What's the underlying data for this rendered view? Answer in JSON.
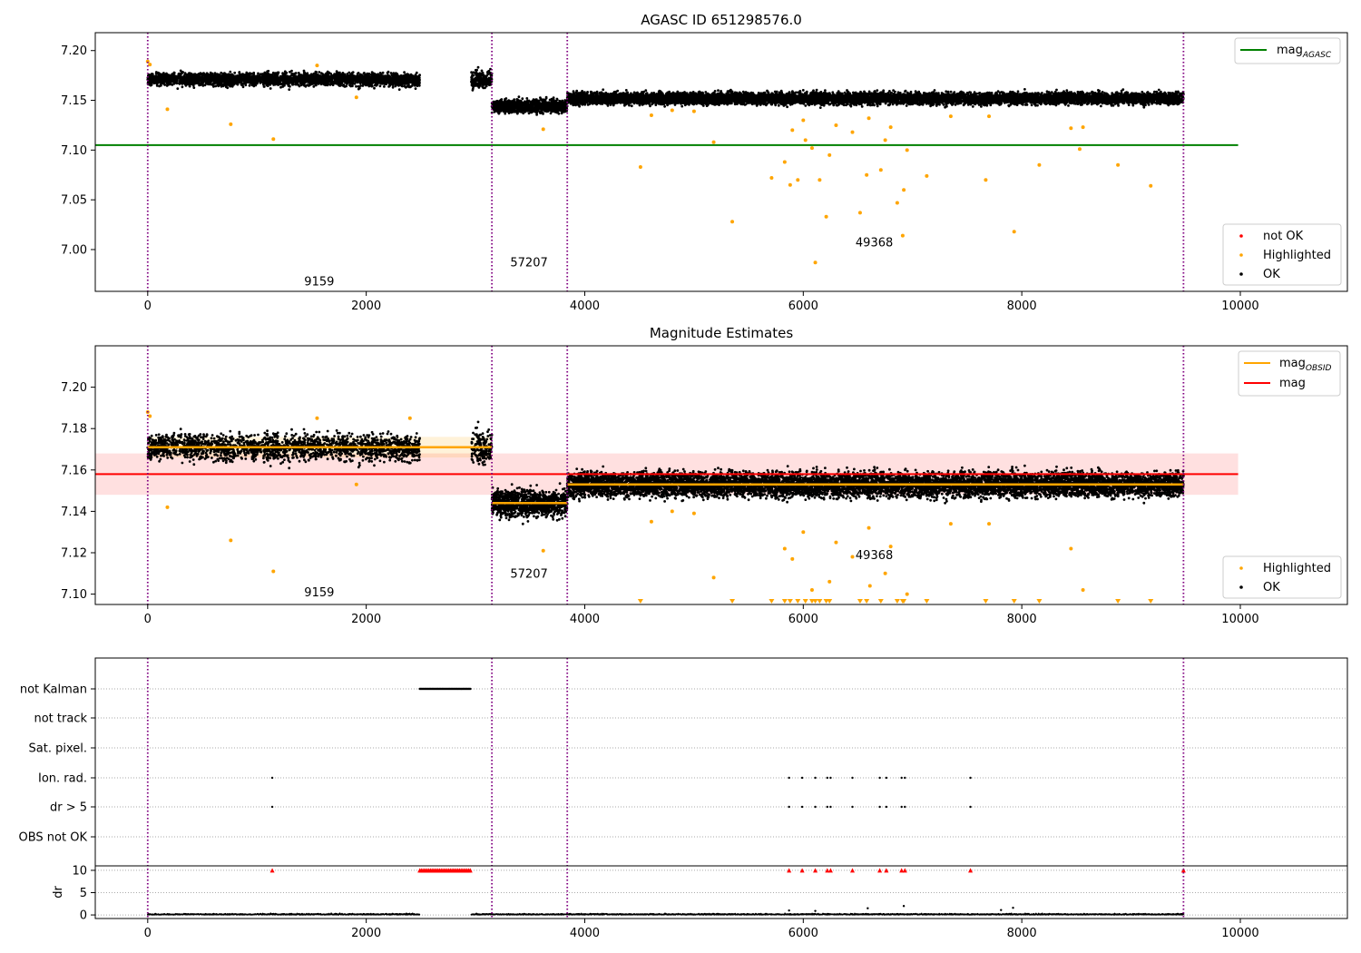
{
  "colors": {
    "ok": "#000000",
    "highlighted": "#ffa500",
    "not_ok": "#ff0000",
    "mag_agasc": "#008000",
    "mag": "#ff0000",
    "mag_obsid": "#ffa500",
    "obsid_boundary": "#800080"
  },
  "chart_data": [
    {
      "type": "scatter",
      "title": "AGASC ID 651298576.0",
      "xlabel": "",
      "ylabel": "",
      "xlim": [
        -480,
        10980
      ],
      "ylim": [
        6.958,
        7.218
      ],
      "xticks": [
        0,
        2000,
        4000,
        6000,
        8000,
        10000
      ],
      "yticks": [
        7.0,
        7.05,
        7.1,
        7.15,
        7.2
      ],
      "ytick_labels": [
        "7.00",
        "7.05",
        "7.10",
        "7.15",
        "7.20"
      ],
      "legend_upper": {
        "placement": "top-right",
        "entries": [
          {
            "label": "mag",
            "subscript": "AGASC"
          }
        ]
      },
      "legend_lower": {
        "placement": "bottom-right",
        "entries": [
          "not OK",
          "Highlighted",
          "OK"
        ]
      },
      "hlines": [
        {
          "name": "mag_AGASC",
          "y": 7.105,
          "x_range": [
            -480,
            9980
          ]
        }
      ],
      "obsid_boundaries": [
        0,
        3150,
        3840,
        9480
      ],
      "obsid_segments": [
        {
          "label": "9159",
          "x_range": [
            0,
            3150
          ],
          "ok_level": 7.171,
          "label_pos": [
            1570,
            6.964
          ]
        },
        {
          "label": "57207",
          "x_range": [
            3150,
            3840
          ],
          "ok_level": 7.144,
          "label_pos": [
            3490,
            6.983
          ]
        },
        {
          "label": "49368",
          "x_range": [
            3840,
            9480
          ],
          "ok_level": 7.152,
          "label_pos": [
            6650,
            7.003
          ]
        }
      ],
      "gaps": [
        [
          2490,
          2960
        ]
      ],
      "highlighted_points": [
        [
          0,
          7.189
        ],
        [
          20,
          7.186
        ],
        [
          180,
          7.141
        ],
        [
          760,
          7.126
        ],
        [
          1150,
          7.111
        ],
        [
          1550,
          7.185
        ],
        [
          1910,
          7.153
        ],
        [
          3620,
          7.121
        ],
        [
          4510,
          7.083
        ],
        [
          5180,
          7.108
        ],
        [
          5350,
          7.028
        ],
        [
          5710,
          7.072
        ],
        [
          5830,
          7.088
        ],
        [
          5880,
          7.065
        ],
        [
          5950,
          7.07
        ],
        [
          6020,
          7.11
        ],
        [
          6080,
          7.102
        ],
        [
          6110,
          6.987
        ],
        [
          6150,
          7.07
        ],
        [
          6210,
          7.033
        ],
        [
          6240,
          7.095
        ],
        [
          6520,
          7.037
        ],
        [
          6580,
          7.075
        ],
        [
          6710,
          7.08
        ],
        [
          6860,
          7.047
        ],
        [
          6910,
          7.014
        ],
        [
          6920,
          7.06
        ],
        [
          7130,
          7.074
        ],
        [
          7670,
          7.07
        ],
        [
          7930,
          7.018
        ],
        [
          8160,
          7.085
        ],
        [
          8530,
          7.101
        ],
        [
          8880,
          7.085
        ],
        [
          9180,
          7.064
        ],
        [
          5900,
          7.12
        ],
        [
          6000,
          7.13
        ],
        [
          6300,
          7.125
        ],
        [
          6450,
          7.118
        ],
        [
          6600,
          7.132
        ],
        [
          6750,
          7.11
        ],
        [
          6800,
          7.123
        ],
        [
          6950,
          7.1
        ],
        [
          7350,
          7.134
        ],
        [
          7700,
          7.134
        ],
        [
          8450,
          7.122
        ],
        [
          4610,
          7.135
        ],
        [
          4800,
          7.14
        ],
        [
          5000,
          7.139
        ],
        [
          8560,
          7.123
        ]
      ]
    },
    {
      "type": "scatter",
      "title": "Magnitude Estimates",
      "xlabel": "",
      "ylabel": "",
      "xlim": [
        -480,
        10980
      ],
      "ylim": [
        7.095,
        7.22
      ],
      "xticks": [
        0,
        2000,
        4000,
        6000,
        8000,
        10000
      ],
      "yticks": [
        7.1,
        7.12,
        7.14,
        7.16,
        7.18,
        7.2
      ],
      "ytick_labels": [
        "7.10",
        "7.12",
        "7.14",
        "7.16",
        "7.18",
        "7.20"
      ],
      "legend_upper": {
        "placement": "top-right",
        "entries": [
          {
            "label": "mag",
            "subscript": "OBSID"
          },
          {
            "label": "mag",
            "subscript": ""
          }
        ]
      },
      "legend_lower": {
        "placement": "bottom-right",
        "entries": [
          "Highlighted",
          "OK"
        ]
      },
      "mag": {
        "value": 7.158,
        "band": [
          7.148,
          7.168
        ],
        "x_range": [
          -480,
          9980
        ]
      },
      "mag_obsid": [
        {
          "x_range": [
            0,
            3150
          ],
          "value": 7.171,
          "band": [
            7.166,
            7.176
          ]
        },
        {
          "x_range": [
            3150,
            3840
          ],
          "value": 7.144,
          "band": [
            7.143,
            7.145
          ]
        },
        {
          "x_range": [
            3840,
            9480
          ],
          "value": 7.153,
          "band": [
            7.152,
            7.154
          ]
        }
      ],
      "obsid_boundaries": [
        0,
        3150,
        3840,
        9480
      ],
      "obsid_segments": [
        {
          "label": "9159",
          "x_range": [
            0,
            3150
          ],
          "ok_level": 7.171,
          "label_pos": [
            1570,
            7.099
          ]
        },
        {
          "label": "57207",
          "x_range": [
            3150,
            3840
          ],
          "ok_level": 7.144,
          "label_pos": [
            3490,
            7.108
          ]
        },
        {
          "label": "49368",
          "x_range": [
            3840,
            9480
          ],
          "ok_level": 7.153,
          "label_pos": [
            6650,
            7.117
          ]
        }
      ],
      "gaps": [
        [
          2490,
          2960
        ]
      ],
      "highlighted_points": [
        [
          0,
          7.188
        ],
        [
          20,
          7.186
        ],
        [
          180,
          7.142
        ],
        [
          760,
          7.126
        ],
        [
          1150,
          7.111
        ],
        [
          1550,
          7.185
        ],
        [
          1910,
          7.153
        ],
        [
          2400,
          7.185
        ],
        [
          3620,
          7.121
        ],
        [
          5180,
          7.108
        ],
        [
          5830,
          7.122
        ],
        [
          5900,
          7.117
        ],
        [
          6000,
          7.13
        ],
        [
          6080,
          7.102
        ],
        [
          6240,
          7.106
        ],
        [
          6300,
          7.125
        ],
        [
          6450,
          7.118
        ],
        [
          6600,
          7.132
        ],
        [
          6750,
          7.11
        ],
        [
          6800,
          7.123
        ],
        [
          6950,
          7.1
        ],
        [
          7350,
          7.134
        ],
        [
          7700,
          7.134
        ],
        [
          8450,
          7.122
        ],
        [
          8560,
          7.102
        ],
        [
          4610,
          7.135
        ],
        [
          4800,
          7.14
        ],
        [
          5000,
          7.139
        ],
        [
          6610,
          7.104
        ]
      ],
      "out_of_range_low_x": [
        4510,
        5350,
        5710,
        5830,
        5880,
        5950,
        6020,
        6080,
        6110,
        6150,
        6210,
        6240,
        6520,
        6580,
        6710,
        6860,
        6910,
        6920,
        7130,
        7670,
        7930,
        8160,
        8880,
        9180
      ]
    },
    {
      "type": "scatter",
      "title": "",
      "xlabel": "",
      "ylabel": "",
      "xlim": [
        -480,
        10980
      ],
      "xticks": [
        0,
        2000,
        4000,
        6000,
        8000,
        10000
      ],
      "flag_rows": [
        "not Kalman",
        "not track",
        "Sat. pixel.",
        "Ion. rad.",
        "dr > 5",
        "OBS not OK"
      ],
      "flags": {
        "not Kalman": [
          [
            2490,
            2960
          ]
        ],
        "not track": [],
        "Sat. pixel.": [],
        "Ion. rad.": [
          1140,
          5870,
          5990,
          6110,
          6220,
          6250,
          6450,
          6700,
          6760,
          6900,
          6930,
          7530
        ],
        "dr > 5": [
          1140,
          5870,
          5990,
          6110,
          6220,
          6250,
          6450,
          6700,
          6760,
          6900,
          6930,
          7530
        ],
        "OBS not OK": []
      },
      "dr": {
        "ylabel": "dr",
        "ylim": [
          -0.8,
          10.8
        ],
        "yticks": [
          0,
          5,
          10
        ],
        "cap_value": 10,
        "capped_x": [
          1140,
          5870,
          5990,
          6110,
          6220,
          6250,
          6450,
          6700,
          6760,
          6900,
          6930,
          7530,
          9480
        ],
        "capped_ranges": [
          [
            2490,
            2960
          ]
        ],
        "outlier_points": [
          [
            6590,
            1.5
          ],
          [
            6920,
            2.0
          ],
          [
            7810,
            1.1
          ],
          [
            7920,
            1.6
          ],
          [
            6110,
            0.9
          ],
          [
            5870,
            1.0
          ]
        ]
      },
      "obsid_boundaries": [
        0,
        3150,
        3840,
        9480
      ],
      "gaps": [
        [
          2490,
          2960
        ]
      ]
    }
  ]
}
